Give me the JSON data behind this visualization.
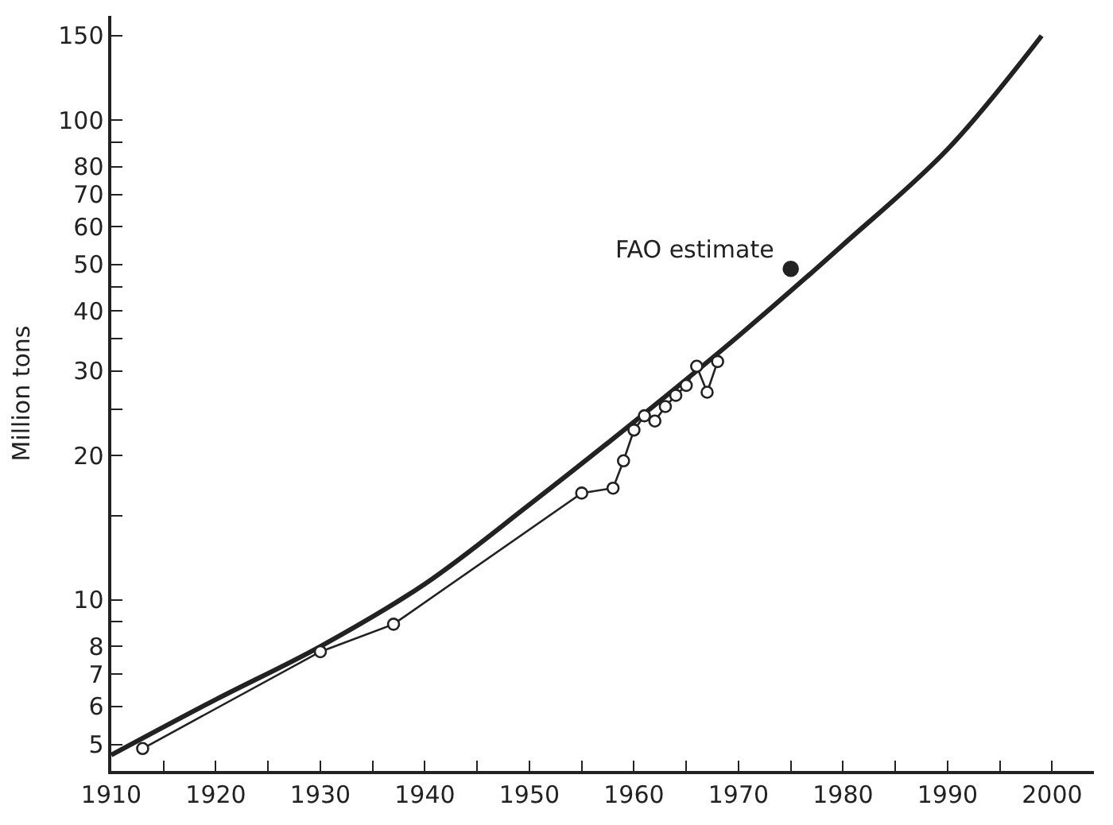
{
  "chart_data": {
    "type": "line",
    "ylabel": "Million tons",
    "log": "y",
    "grid": false,
    "xlim": [
      1910,
      2004
    ],
    "xticks": [
      1910,
      {
        "value": 1915,
        "label": null
      },
      1920,
      {
        "value": 1925,
        "label": null
      },
      1930,
      {
        "value": 1935,
        "label": null
      },
      1940,
      {
        "value": 1945,
        "label": null
      },
      1950,
      {
        "value": 1955,
        "label": null
      },
      1960,
      {
        "value": 1965,
        "label": null
      },
      1970,
      {
        "value": 1975,
        "label": null
      },
      1980,
      {
        "value": 1985,
        "label": null
      },
      1990,
      {
        "value": 1995,
        "label": null
      },
      2000
    ],
    "ylim": [
      4.4,
      165
    ],
    "yticks": [
      5,
      6,
      7,
      8,
      {
        "value": 9,
        "label": null
      },
      10,
      {
        "value": 15,
        "label": null
      },
      20,
      {
        "value": 25,
        "label": null
      },
      30,
      {
        "value": 35,
        "label": null
      },
      40,
      {
        "value": 45,
        "label": null
      },
      50,
      60,
      70,
      80,
      {
        "value": 90,
        "label": null
      },
      100,
      150
    ],
    "annotations": [
      {
        "text": "FAO estimate",
        "x": 1975,
        "y": 49
      }
    ],
    "series": [
      {
        "color": "#222222",
        "marker": "none",
        "line_style": "solid",
        "x": [
          1910,
          1920,
          1930,
          1940,
          1950,
          1960,
          1970,
          1980,
          1990,
          1999
        ],
        "values": [
          4.75,
          6.2,
          8.0,
          10.8,
          15.8,
          23.5,
          35.5,
          55,
          87,
          150
        ]
      },
      {
        "color": "#222222",
        "marker": "circle",
        "line_style": "solid",
        "x": [
          1913,
          1930,
          1937,
          1955,
          1958,
          1959,
          1960,
          1961,
          1962,
          1963,
          1964,
          1965,
          1966,
          1967,
          1968
        ],
        "values": [
          4.9,
          7.8,
          8.9,
          16.7,
          17.1,
          19.5,
          22.6,
          24.2,
          23.6,
          25.3,
          26.7,
          28,
          30.7,
          27.1,
          31.4
        ]
      },
      {
        "type": "scatter",
        "color": "#222222",
        "marker": "circle",
        "x": [
          1975
        ],
        "values": [
          49
        ]
      }
    ]
  }
}
